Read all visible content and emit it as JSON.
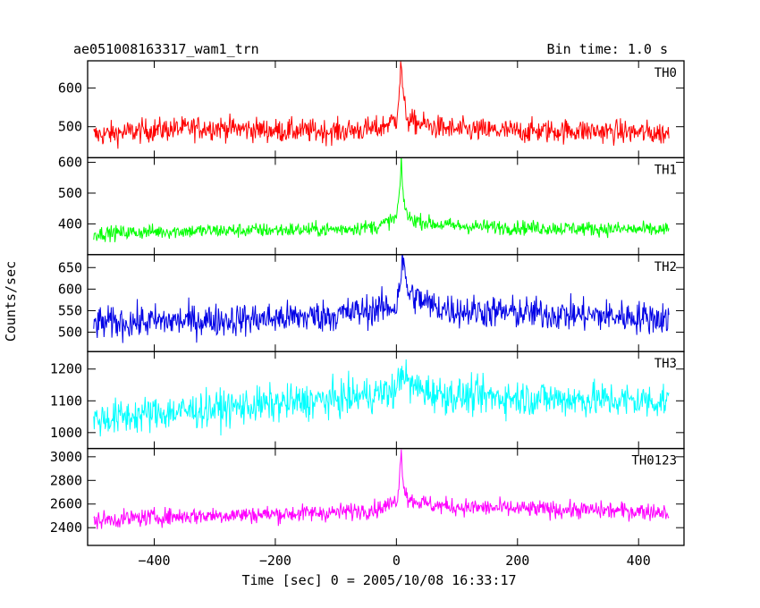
{
  "header": {
    "title": "ae051008163317_wam1_trn",
    "bin_time": "Bin time: 1.0 s"
  },
  "chart_data": {
    "type": "line",
    "title": "ae051008163317_wam1_trn",
    "subtitle": "Bin time: 1.0 s",
    "xlabel": "Time [sec] 0 = 2005/10/08 16:33:17",
    "ylabel": "Counts/sec",
    "xlim": [
      -510,
      475
    ],
    "x_ticks": [
      -400,
      -200,
      0,
      200,
      400
    ],
    "x_tick_labels": [
      "−400",
      "−200",
      "0",
      "200",
      "400"
    ],
    "grid": false,
    "panels": [
      {
        "name": "TH0",
        "color": "#ff0000",
        "ylim": [
          420,
          670
        ],
        "y_ticks": [
          500,
          600
        ],
        "series": [
          {
            "name": "TH0",
            "x": [
              -500,
              -400,
              -350,
              -300,
              -200,
              -100,
              -30,
              0,
              5,
              8,
              12,
              20,
              60,
              100,
              200,
              300,
              400,
              450
            ],
            "y": [
              478,
              492,
              495,
              498,
              490,
              488,
              495,
              520,
              600,
              665,
              560,
              515,
              500,
              492,
              488,
              490,
              485,
              482
            ],
            "noise": 26
          }
        ]
      },
      {
        "name": "TH1",
        "color": "#00ff00",
        "ylim": [
          300,
          615
        ],
        "y_ticks": [
          400,
          500,
          600
        ],
        "series": [
          {
            "name": "TH1",
            "x": [
              -500,
              -400,
              -300,
              -200,
              -100,
              -30,
              0,
              5,
              8,
              12,
              20,
              60,
              100,
              200,
              300,
              400,
              450
            ],
            "y": [
              368,
              375,
              378,
              380,
              382,
              392,
              420,
              500,
              590,
              475,
              418,
              400,
              393,
              388,
              385,
              382,
              380
            ],
            "noise": 20
          }
        ]
      },
      {
        "name": "TH2",
        "color": "#0000e6",
        "ylim": [
          455,
          680
        ],
        "y_ticks": [
          500,
          550,
          600,
          650
        ],
        "series": [
          {
            "name": "TH2",
            "x": [
              -500,
              -400,
              -300,
              -200,
              -100,
              0,
              5,
              10,
              20,
              60,
              100,
              200,
              300,
              400,
              450
            ],
            "y": [
              520,
              525,
              528,
              532,
              540,
              560,
              610,
              665,
              590,
              560,
              550,
              545,
              540,
              535,
              532
            ],
            "noise": 32
          }
        ]
      },
      {
        "name": "TH3",
        "color": "#00ffff",
        "ylim": [
          950,
          1255
        ],
        "y_ticks": [
          1000,
          1100,
          1200
        ],
        "series": [
          {
            "name": "TH3",
            "x": [
              -500,
              -400,
              -300,
              -200,
              -100,
              0,
              5,
              10,
              20,
              60,
              100,
              200,
              300,
              400,
              450
            ],
            "y": [
              1040,
              1060,
              1075,
              1090,
              1105,
              1130,
              1170,
              1200,
              1150,
              1125,
              1115,
              1110,
              1105,
              1100,
              1100
            ],
            "noise": 48
          }
        ]
      },
      {
        "name": "TH0123",
        "color": "#ff00ff",
        "ylim": [
          2250,
          3070
        ],
        "y_ticks": [
          2400,
          2600,
          2800,
          3000
        ],
        "series": [
          {
            "name": "TH0123",
            "x": [
              -500,
              -400,
              -300,
              -200,
              -100,
              -30,
              0,
              5,
              8,
              12,
              20,
              60,
              100,
              200,
              300,
              400,
              450
            ],
            "y": [
              2460,
              2490,
              2505,
              2515,
              2530,
              2560,
              2620,
              2800,
              3050,
              2760,
              2640,
              2590,
              2575,
              2560,
              2550,
              2540,
              2535
            ],
            "noise": 62
          }
        ]
      }
    ]
  }
}
